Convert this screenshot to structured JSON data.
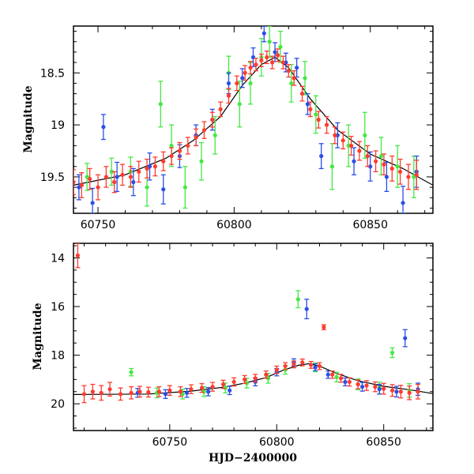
{
  "chart_data": [
    {
      "type": "scatter",
      "panel": "top",
      "xlabel": "",
      "ylabel": "Magnitude",
      "xlim": [
        60741,
        60873
      ],
      "ylim": [
        19.85,
        18.05
      ],
      "y_inverted": true,
      "xticks": [
        60750,
        60800,
        60850
      ],
      "xtick_labels": [
        "60750",
        "60800",
        "60850"
      ],
      "yticks": [
        18.5,
        19,
        19.5
      ],
      "ytick_labels": [
        "18.5",
        "19",
        "19.5"
      ],
      "grid": false,
      "legend": "none",
      "model_curve": {
        "color": "#000000",
        "x": [
          60741,
          60760,
          60775,
          60785,
          60795,
          60803,
          60810,
          60815,
          60820,
          60828,
          60838,
          60850,
          60862,
          60873
        ],
        "y": [
          19.58,
          19.48,
          19.32,
          19.15,
          18.92,
          18.62,
          18.42,
          18.35,
          18.45,
          18.75,
          19.05,
          19.28,
          19.42,
          19.58
        ]
      },
      "series": [
        {
          "color": "#ff3b2f",
          "x": [
            60741,
            60744,
            60747,
            60750,
            60753,
            60756,
            60759,
            60762,
            60765,
            60768,
            60771,
            60774,
            60777,
            60780,
            60783,
            60786,
            60789,
            60792,
            60795,
            60798,
            60801,
            60804,
            60806,
            60808,
            60810,
            60812,
            60814,
            60816,
            60818,
            60820,
            60822,
            60825,
            60828,
            60831,
            60834,
            60837,
            60840,
            60843,
            60846,
            60849,
            60852,
            60855,
            60858,
            60861,
            60864,
            60867
          ],
          "y": [
            19.55,
            19.58,
            19.52,
            19.6,
            19.5,
            19.55,
            19.48,
            19.5,
            19.45,
            19.42,
            19.4,
            19.35,
            19.3,
            19.25,
            19.2,
            19.12,
            19.05,
            18.95,
            18.85,
            18.72,
            18.6,
            18.5,
            18.45,
            18.42,
            18.38,
            18.35,
            18.4,
            18.33,
            18.4,
            18.48,
            18.55,
            18.7,
            18.85,
            18.95,
            19.0,
            19.1,
            19.15,
            19.2,
            19.25,
            19.3,
            19.35,
            19.38,
            19.42,
            19.45,
            19.5,
            19.48
          ],
          "err": [
            0.12,
            0.12,
            0.1,
            0.12,
            0.1,
            0.1,
            0.1,
            0.1,
            0.1,
            0.09,
            0.09,
            0.09,
            0.08,
            0.08,
            0.08,
            0.08,
            0.08,
            0.07,
            0.07,
            0.07,
            0.07,
            0.07,
            0.06,
            0.06,
            0.06,
            0.06,
            0.06,
            0.06,
            0.06,
            0.06,
            0.07,
            0.07,
            0.07,
            0.08,
            0.08,
            0.08,
            0.08,
            0.09,
            0.09,
            0.1,
            0.1,
            0.1,
            0.12,
            0.12,
            0.12,
            0.14
          ]
        },
        {
          "color": "#2a4fe8",
          "x": [
            60743,
            60748,
            60752,
            60757,
            60763,
            60769,
            60774,
            60780,
            60786,
            60792,
            60798,
            60803,
            60807,
            60811,
            60815,
            60819,
            60823,
            60827,
            60832,
            60838,
            60844,
            60850,
            60856,
            60862,
            60867
          ],
          "y": [
            19.6,
            19.75,
            19.02,
            19.5,
            19.55,
            19.4,
            19.62,
            19.3,
            19.1,
            18.95,
            18.6,
            18.55,
            18.35,
            18.12,
            18.3,
            18.4,
            18.45,
            18.8,
            19.3,
            19.1,
            19.35,
            19.4,
            19.5,
            19.75,
            19.45
          ],
          "err": [
            0.12,
            0.14,
            0.12,
            0.14,
            0.13,
            0.13,
            0.14,
            0.11,
            0.1,
            0.1,
            0.1,
            0.09,
            0.09,
            0.08,
            0.09,
            0.09,
            0.09,
            0.1,
            0.12,
            0.12,
            0.13,
            0.14,
            0.14,
            0.16,
            0.15
          ]
        },
        {
          "color": "#44e844",
          "x": [
            60746,
            60755,
            60762,
            60768,
            60773,
            60777,
            60782,
            60788,
            60793,
            60798,
            60802,
            60806,
            60810,
            60813,
            60817,
            60821,
            60826,
            60830,
            60836,
            60842,
            60848,
            60854,
            60860,
            60866
          ],
          "y": [
            19.5,
            19.45,
            19.45,
            19.6,
            18.8,
            19.2,
            19.6,
            19.35,
            19.1,
            18.5,
            18.8,
            18.6,
            18.35,
            18.2,
            18.25,
            18.6,
            18.55,
            18.9,
            19.4,
            19.2,
            19.1,
            19.3,
            19.4,
            19.5
          ],
          "err": [
            0.13,
            0.13,
            0.14,
            0.18,
            0.22,
            0.2,
            0.2,
            0.18,
            0.18,
            0.16,
            0.22,
            0.2,
            0.18,
            0.15,
            0.15,
            0.18,
            0.16,
            0.18,
            0.22,
            0.2,
            0.22,
            0.18,
            0.2,
            0.2
          ]
        }
      ]
    },
    {
      "type": "scatter",
      "panel": "bottom",
      "xlabel": "HJD−2400000",
      "ylabel": "Magnitude",
      "xlim": [
        60705,
        60873
      ],
      "ylim": [
        21.1,
        13.4
      ],
      "y_inverted": true,
      "xticks": [
        60750,
        60800,
        60850
      ],
      "xtick_labels": [
        "60750",
        "60800",
        "60850"
      ],
      "yticks": [
        14,
        16,
        18,
        20
      ],
      "ytick_labels": [
        "14",
        "16",
        "18",
        "20"
      ],
      "grid": false,
      "legend": "none",
      "model_curve": {
        "color": "#000000",
        "x": [
          60705,
          60740,
          60760,
          60775,
          60785,
          60795,
          60803,
          60810,
          60815,
          60820,
          60828,
          60838,
          60850,
          60862,
          60873
        ],
        "y": [
          19.62,
          19.6,
          19.48,
          19.32,
          19.15,
          18.92,
          18.62,
          18.42,
          18.35,
          18.45,
          18.75,
          19.05,
          19.28,
          19.42,
          19.58
        ]
      },
      "series": [
        {
          "color": "#ff3b2f",
          "x": [
            60707,
            60710,
            60714,
            60718,
            60722,
            60727,
            60732,
            60736,
            60740,
            60745,
            60750,
            60755,
            60760,
            60765,
            60770,
            60775,
            60780,
            60785,
            60790,
            60795,
            60800,
            60804,
            60808,
            60812,
            60816,
            60820,
            60822,
            60826,
            60830,
            60834,
            60838,
            60842,
            60846,
            60850,
            60854,
            60858,
            60862,
            60866
          ],
          "y": [
            13.9,
            19.6,
            19.5,
            19.55,
            19.4,
            19.6,
            19.55,
            19.5,
            19.52,
            19.5,
            19.45,
            19.5,
            19.4,
            19.35,
            19.3,
            19.2,
            19.1,
            19.0,
            18.95,
            18.8,
            18.6,
            18.45,
            18.38,
            18.3,
            18.4,
            18.45,
            16.85,
            18.8,
            18.95,
            19.1,
            19.2,
            19.25,
            19.3,
            19.38,
            19.45,
            19.5,
            19.55,
            19.5
          ],
          "err": [
            0.5,
            0.35,
            0.3,
            0.3,
            0.28,
            0.25,
            0.25,
            0.22,
            0.2,
            0.2,
            0.2,
            0.2,
            0.18,
            0.18,
            0.18,
            0.17,
            0.17,
            0.16,
            0.16,
            0.15,
            0.15,
            0.14,
            0.14,
            0.14,
            0.14,
            0.14,
            0.1,
            0.15,
            0.16,
            0.17,
            0.18,
            0.2,
            0.2,
            0.22,
            0.24,
            0.26,
            0.28,
            0.3
          ]
        },
        {
          "color": "#2a4fe8",
          "x": [
            60735,
            60748,
            60758,
            60768,
            60778,
            60790,
            60800,
            60808,
            60814,
            60818,
            60824,
            60832,
            60840,
            60848,
            60856,
            60860,
            60866
          ],
          "y": [
            19.55,
            19.6,
            19.55,
            19.5,
            19.45,
            19.1,
            18.7,
            18.3,
            16.1,
            18.5,
            18.8,
            19.1,
            19.3,
            19.4,
            19.5,
            17.3,
            19.4
          ],
          "err": [
            0.18,
            0.18,
            0.18,
            0.17,
            0.17,
            0.16,
            0.15,
            0.15,
            0.4,
            0.14,
            0.15,
            0.16,
            0.18,
            0.2,
            0.22,
            0.35,
            0.25
          ]
        },
        {
          "color": "#44e844",
          "x": [
            60732,
            60744,
            60756,
            60766,
            60776,
            60786,
            60796,
            60804,
            60810,
            60818,
            60828,
            60838,
            60848,
            60854,
            60862
          ],
          "y": [
            18.7,
            19.55,
            19.6,
            19.5,
            19.35,
            19.15,
            18.95,
            18.6,
            15.7,
            18.5,
            18.9,
            19.2,
            19.35,
            17.9,
            19.45
          ],
          "err": [
            0.15,
            0.2,
            0.2,
            0.2,
            0.2,
            0.2,
            0.2,
            0.18,
            0.35,
            0.18,
            0.2,
            0.22,
            0.24,
            0.2,
            0.28
          ]
        }
      ]
    }
  ]
}
